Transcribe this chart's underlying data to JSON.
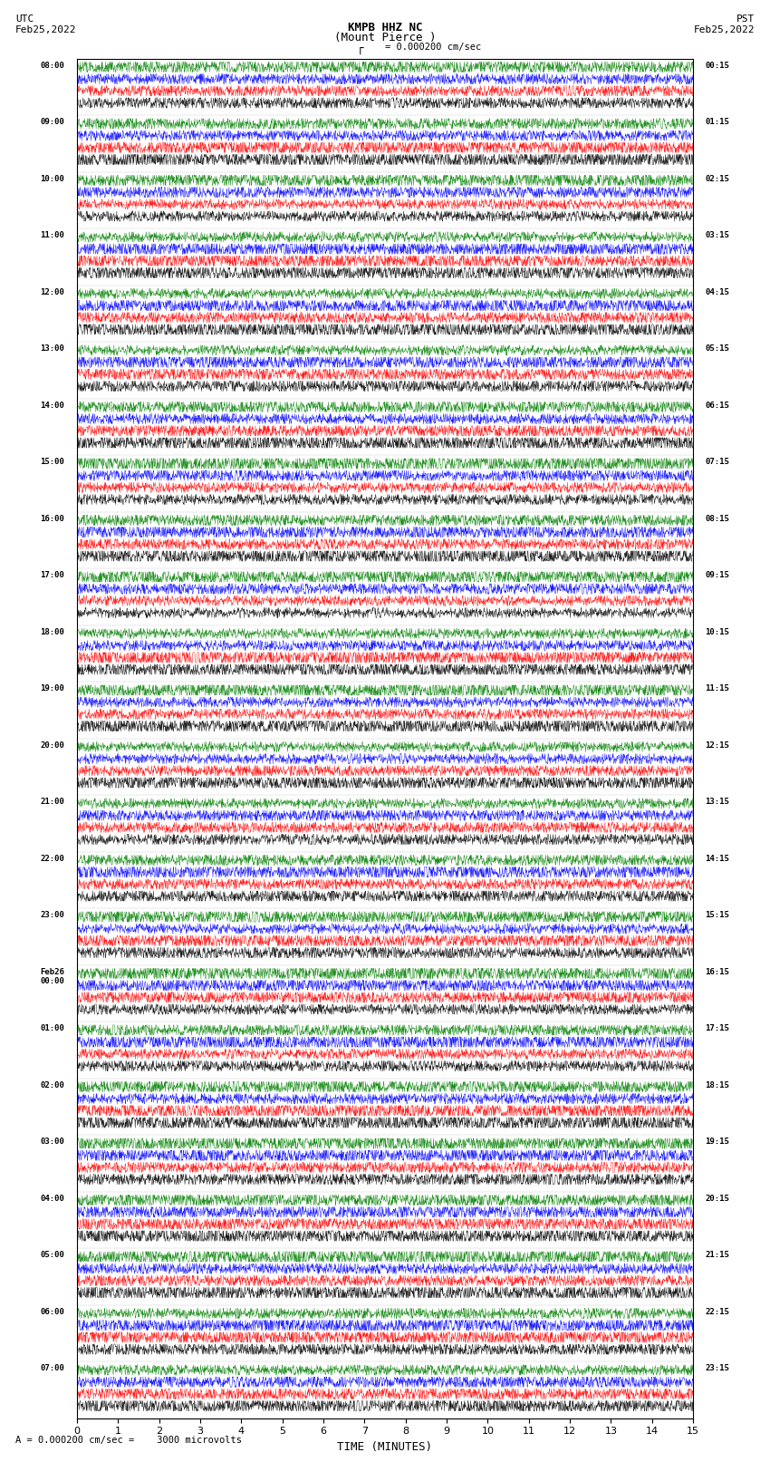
{
  "title_line1": "KMPB HHZ NC",
  "title_line2": "(Mount Pierce )",
  "scale_label": "= 0.000200 cm/sec",
  "bottom_label": "A = 0.000200 cm/sec =    3000 microvolts",
  "utc_label": "UTC\nFeb25,2022",
  "pst_label": "PST\nFeb25,2022",
  "xlabel": "TIME (MINUTES)",
  "xlim": [
    0,
    15
  ],
  "xticks": [
    0,
    1,
    2,
    3,
    4,
    5,
    6,
    7,
    8,
    9,
    10,
    11,
    12,
    13,
    14,
    15
  ],
  "colors": [
    "black",
    "red",
    "blue",
    "green"
  ],
  "bg_color": "white",
  "left_times": [
    "08:00",
    "09:00",
    "10:00",
    "11:00",
    "12:00",
    "13:00",
    "14:00",
    "15:00",
    "16:00",
    "17:00",
    "18:00",
    "19:00",
    "20:00",
    "21:00",
    "22:00",
    "23:00",
    "Feb26\n00:00",
    "01:00",
    "02:00",
    "03:00",
    "04:00",
    "05:00",
    "06:00",
    "07:00"
  ],
  "right_times": [
    "00:15",
    "01:15",
    "02:15",
    "03:15",
    "04:15",
    "05:15",
    "06:15",
    "07:15",
    "08:15",
    "09:15",
    "10:15",
    "11:15",
    "12:15",
    "13:15",
    "14:15",
    "15:15",
    "16:15",
    "17:15",
    "18:15",
    "19:15",
    "20:15",
    "21:15",
    "22:15",
    "23:15"
  ],
  "n_rows": 24,
  "traces_per_row": 4,
  "noise_scale": [
    0.25,
    0.35,
    0.3,
    0.18
  ],
  "seed": 42
}
